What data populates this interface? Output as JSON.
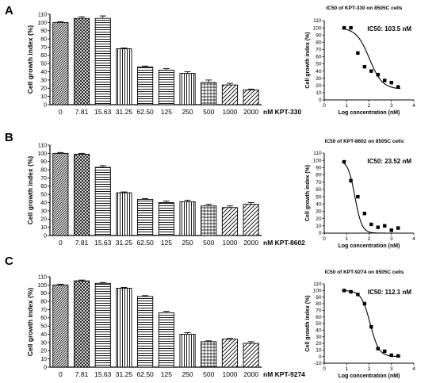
{
  "chart_data": [
    {
      "panel": "A",
      "type": "bar",
      "ylabel": "Cell growth index (%)",
      "ylim": [
        0,
        110
      ],
      "yticks": [
        0,
        10,
        20,
        30,
        40,
        50,
        60,
        70,
        80,
        90,
        100,
        110
      ],
      "categories": [
        "0",
        "7.81",
        "15.63",
        "31.25",
        "62.50",
        "125",
        "250",
        "500",
        "1000",
        "2000"
      ],
      "unit_label": "nM KPT-330",
      "values": [
        100,
        105,
        105,
        68,
        46,
        42,
        38,
        27,
        24,
        18
      ],
      "errors": [
        1,
        2,
        3,
        1,
        1,
        2,
        2,
        3,
        2,
        1
      ],
      "patterns": [
        "hatchR",
        "cross",
        "horiz",
        "vert",
        "horiz",
        "horiz",
        "vert",
        "grid",
        "diagR",
        "diagR"
      ]
    },
    {
      "panel": "A",
      "type": "scatter",
      "title": "IC50 of KPT-330 on 8505C cells",
      "annotation": "IC50: 103.5 nM",
      "xlabel": "Log concentration (nM)",
      "ylabel": "Cell growth index (%)",
      "xlim": [
        0,
        4
      ],
      "ylim": [
        0,
        110
      ],
      "xticks": [
        0,
        1,
        2,
        3,
        4
      ],
      "yticks": [
        0,
        10,
        20,
        30,
        40,
        50,
        60,
        70,
        80,
        90,
        100,
        110
      ],
      "ic50_log": 2.015,
      "top": 100,
      "bottom": 15,
      "hill": 1.5,
      "points": [
        [
          0.89,
          100
        ],
        [
          1.19,
          100
        ],
        [
          1.5,
          65
        ],
        [
          1.8,
          46
        ],
        [
          2.1,
          40
        ],
        [
          2.4,
          35
        ],
        [
          2.7,
          27
        ],
        [
          3.0,
          24
        ],
        [
          3.3,
          18
        ]
      ]
    },
    {
      "panel": "B",
      "type": "bar",
      "ylabel": "Cell growth index (%)",
      "ylim": [
        0,
        110
      ],
      "yticks": [
        0,
        10,
        20,
        30,
        40,
        50,
        60,
        70,
        80,
        90,
        100,
        110
      ],
      "categories": [
        "0",
        "7.81",
        "15.63",
        "31.25",
        "62.50",
        "125",
        "250",
        "500",
        "1000",
        "2000"
      ],
      "unit_label": "nM KPT-8602",
      "values": [
        100,
        99,
        83,
        52,
        44,
        40,
        41,
        36,
        34,
        38
      ],
      "errors": [
        1,
        1,
        2,
        1,
        1,
        2,
        2,
        2,
        2,
        2
      ],
      "patterns": [
        "hatchR",
        "cross",
        "horiz",
        "vert",
        "horiz",
        "horiz",
        "vert",
        "grid",
        "diagR",
        "diagR"
      ]
    },
    {
      "panel": "B",
      "type": "scatter",
      "title": "IC50 of KPT-8602 on 8505C cells",
      "annotation": "IC50: 23.52 nM",
      "xlabel": "Log concentration (nM)",
      "ylabel": "Cell growth index (%)",
      "xlim": [
        0,
        4
      ],
      "ylim": [
        0,
        110
      ],
      "xticks": [
        0,
        1,
        2,
        3,
        4
      ],
      "yticks": [
        0,
        10,
        20,
        30,
        40,
        50,
        60,
        70,
        80,
        90,
        100,
        110
      ],
      "ic50_log": 1.371,
      "top": 100,
      "bottom": 0,
      "hill": 2.8,
      "points": [
        [
          0.89,
          98
        ],
        [
          1.19,
          72
        ],
        [
          1.5,
          50
        ],
        [
          1.8,
          27
        ],
        [
          2.1,
          12
        ],
        [
          2.4,
          8
        ],
        [
          2.7,
          10
        ],
        [
          3.0,
          4
        ],
        [
          3.3,
          7
        ]
      ]
    },
    {
      "panel": "C",
      "type": "bar",
      "ylabel": "Cell growth index (%)",
      "ylim": [
        0,
        110
      ],
      "yticks": [
        0,
        10,
        20,
        30,
        40,
        50,
        60,
        70,
        80,
        90,
        100,
        110
      ],
      "categories": [
        "0",
        "7.81",
        "15.63",
        "31.25",
        "62.50",
        "125",
        "250",
        "500",
        "1000",
        "2000"
      ],
      "unit_label": "nM KPT-9274",
      "values": [
        100,
        105,
        102,
        96,
        86,
        66,
        40,
        31,
        34,
        29
      ],
      "errors": [
        1,
        1,
        1,
        1,
        1,
        2,
        2,
        1,
        1,
        2
      ],
      "patterns": [
        "hatchR",
        "cross",
        "horiz",
        "vert",
        "horiz",
        "horiz",
        "vert",
        "grid",
        "diagR",
        "diagR"
      ]
    },
    {
      "panel": "C",
      "type": "scatter",
      "title": "IC50 of KPT-9274 on 8505C cells",
      "annotation": "IC50: 112.1 nM",
      "xlabel": "Log concentration (nM)",
      "ylabel": "Cell growth index (%)",
      "xlim": [
        0,
        4
      ],
      "ylim": [
        -10,
        110
      ],
      "xticks": [
        0,
        1,
        2,
        3,
        4
      ],
      "yticks": [
        -10,
        0,
        10,
        20,
        30,
        40,
        50,
        60,
        70,
        80,
        90,
        100,
        110
      ],
      "ic50_log": 2.05,
      "top": 100,
      "bottom": 0,
      "hill": 2.2,
      "points": [
        [
          0.89,
          100
        ],
        [
          1.19,
          98
        ],
        [
          1.5,
          94
        ],
        [
          1.8,
          80
        ],
        [
          2.1,
          45
        ],
        [
          2.4,
          12
        ],
        [
          2.7,
          8
        ],
        [
          3.0,
          2
        ],
        [
          3.3,
          1
        ]
      ]
    }
  ]
}
